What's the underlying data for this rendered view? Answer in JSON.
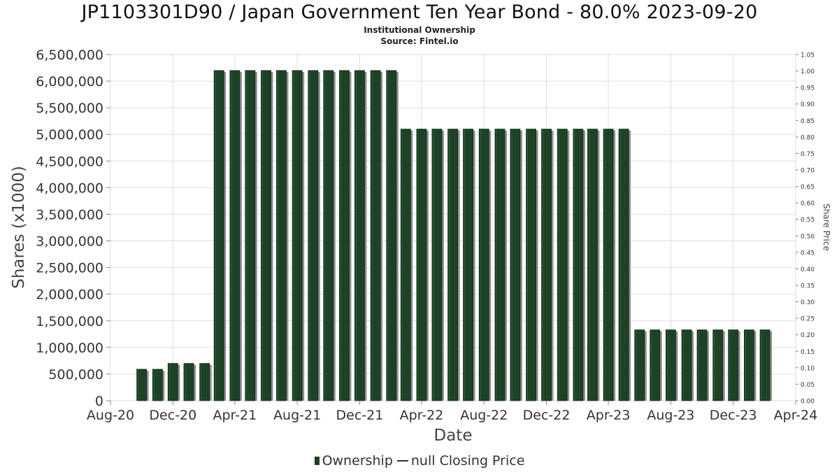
{
  "title": "JP1103301D90 / Japan Government Ten Year Bond - 80.0% 2023-09-20",
  "subtitle": "Institutional Ownership",
  "source": "Source: Fintel.io",
  "legend": {
    "ownership": "Ownership",
    "closing_price": "null Closing Price"
  },
  "colors": {
    "bar": "#1e4226",
    "bar_shadow": "#8f8f8f",
    "grid": "#dddddd",
    "axis": "#888888"
  },
  "chart_data": {
    "type": "bar",
    "xlabel": "Date",
    "ylabel": "Shares (x1000)",
    "y2label": "Share Price",
    "ylim": [
      0,
      6500000
    ],
    "y2lim": [
      0,
      1.05
    ],
    "x_range": [
      "2020-08-01",
      "2024-04-01"
    ],
    "x_tick_labels": [
      "Aug-20",
      "Dec-20",
      "Apr-21",
      "Aug-21",
      "Dec-21",
      "Apr-22",
      "Aug-22",
      "Dec-22",
      "Apr-23",
      "Aug-23",
      "Dec-23",
      "Apr-24"
    ],
    "y_tick_labels": [
      "0",
      "500,000",
      "1,000,000",
      "1,500,000",
      "2,000,000",
      "2,500,000",
      "3,000,000",
      "3,500,000",
      "4,000,000",
      "4,500,000",
      "5,000,000",
      "5,500,000",
      "6,000,000",
      "6,500,000"
    ],
    "y2_tick_labels": [
      "0.00",
      "0.05",
      "0.10",
      "0.15",
      "0.20",
      "0.25",
      "0.30",
      "0.35",
      "0.40",
      "0.45",
      "0.50",
      "0.55",
      "0.60",
      "0.65",
      "0.70",
      "0.75",
      "0.80",
      "0.85",
      "0.90",
      "0.95",
      "1.00",
      "1.05"
    ],
    "grid": true,
    "legend_position": "bottom",
    "series": [
      {
        "name": "Ownership",
        "x": [
          "2020-10-01",
          "2020-11-01",
          "2020-12-01",
          "2021-01-01",
          "2021-02-01",
          "2021-03-01",
          "2021-04-01",
          "2021-05-01",
          "2021-06-01",
          "2021-07-01",
          "2021-08-01",
          "2021-09-01",
          "2021-10-01",
          "2021-11-01",
          "2021-12-01",
          "2022-01-01",
          "2022-02-01",
          "2022-03-01",
          "2022-04-01",
          "2022-05-01",
          "2022-06-01",
          "2022-07-01",
          "2022-08-01",
          "2022-09-01",
          "2022-10-01",
          "2022-11-01",
          "2022-12-01",
          "2023-01-01",
          "2023-02-01",
          "2023-03-01",
          "2023-04-01",
          "2023-05-01",
          "2023-06-01",
          "2023-07-01",
          "2023-08-01",
          "2023-09-01",
          "2023-10-01",
          "2023-11-01",
          "2023-12-01",
          "2024-01-01",
          "2024-02-01"
        ],
        "values": [
          590000,
          590000,
          700000,
          700000,
          700000,
          6200000,
          6200000,
          6200000,
          6200000,
          6200000,
          6200000,
          6200000,
          6200000,
          6200000,
          6200000,
          6200000,
          6200000,
          5100000,
          5100000,
          5100000,
          5100000,
          5100000,
          5100000,
          5100000,
          5100000,
          5100000,
          5100000,
          5100000,
          5100000,
          5100000,
          5100000,
          5100000,
          1330000,
          1330000,
          1330000,
          1330000,
          1330000,
          1330000,
          1330000,
          1330000,
          1330000
        ]
      }
    ]
  }
}
